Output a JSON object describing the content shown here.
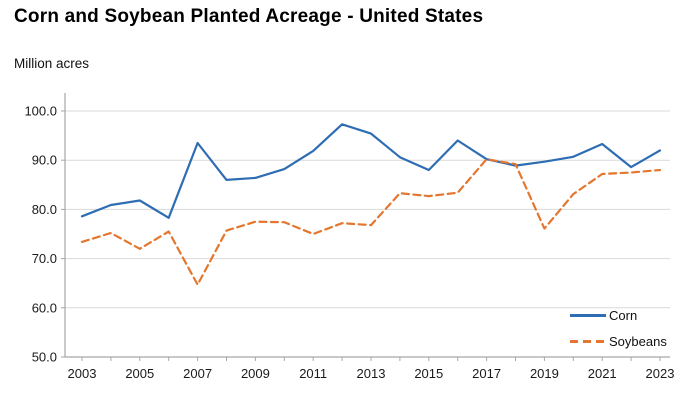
{
  "header": {
    "title": "Corn and Soybean Planted Acreage - United States",
    "units_label": "Million acres"
  },
  "chart_data": {
    "type": "line",
    "title": "Corn and Soybean Planted Acreage - United States",
    "ylabel": "Million acres",
    "xlabel": "",
    "x": [
      2003,
      2004,
      2005,
      2006,
      2007,
      2008,
      2009,
      2010,
      2011,
      2012,
      2013,
      2014,
      2015,
      2016,
      2017,
      2018,
      2019,
      2020,
      2021,
      2022,
      2023
    ],
    "series": [
      {
        "name": "Corn",
        "color": "#2e6db4",
        "line_style": "solid",
        "values": [
          78.6,
          80.9,
          81.8,
          78.3,
          93.5,
          86.0,
          86.4,
          88.2,
          91.9,
          97.3,
          95.4,
          90.6,
          88.0,
          94.0,
          90.2,
          88.9,
          89.7,
          90.7,
          93.3,
          88.6,
          92.0
        ]
      },
      {
        "name": "Soybeans",
        "color": "#e4772f",
        "line_style": "dashed",
        "values": [
          73.4,
          75.2,
          72.0,
          75.5,
          64.7,
          75.7,
          77.5,
          77.4,
          75.0,
          77.2,
          76.8,
          83.3,
          82.7,
          83.4,
          90.2,
          89.2,
          76.1,
          83.1,
          87.2,
          87.5,
          88.0
        ]
      }
    ],
    "ylim": [
      50.0,
      100.0
    ],
    "ytick_step": 10,
    "ytick_labels": [
      "50.0",
      "60.0",
      "70.0",
      "80.0",
      "90.0",
      "100.0"
    ],
    "xtick_label_years": [
      2003,
      2005,
      2007,
      2009,
      2011,
      2013,
      2015,
      2017,
      2019,
      2021,
      2023
    ],
    "grid": "horizontal",
    "legend_position": "inside-bottom-right",
    "axis_color": "#a6a6a6",
    "grid_color": "#d9d9d9",
    "tick_label_color": "#1a1a1a"
  }
}
